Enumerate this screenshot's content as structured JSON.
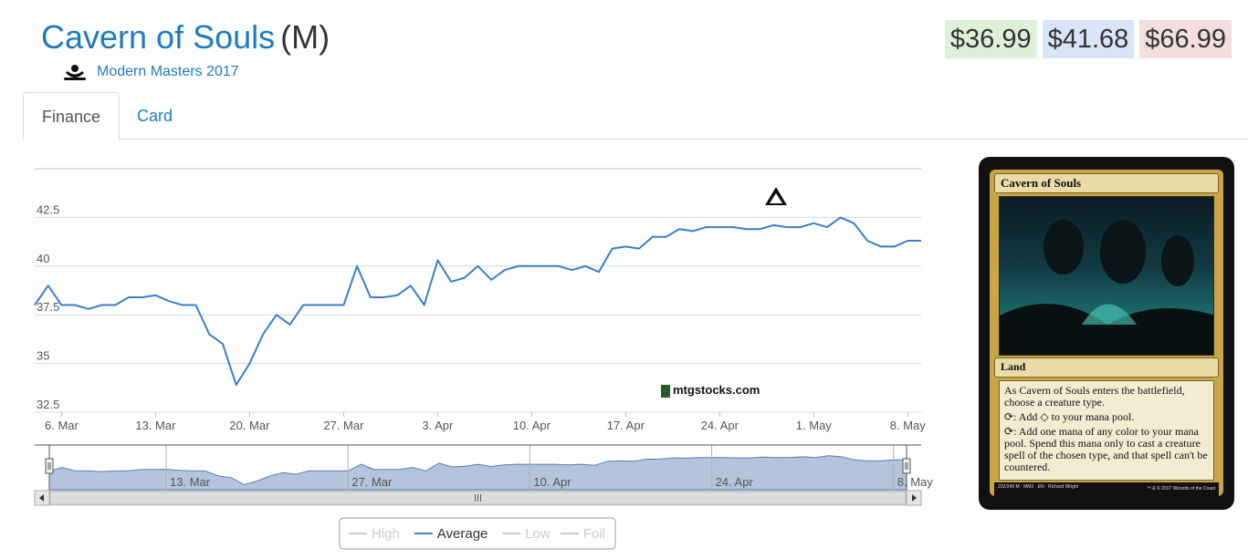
{
  "card": {
    "name": "Cavern of Souls",
    "rarity": "(M)",
    "set_name": "Modern Masters 2017",
    "set_icon": "modern-masters-set-icon"
  },
  "prices": {
    "low": "$36.99",
    "average": "$41.68",
    "high": "$66.99"
  },
  "colors": {
    "link": "#1f7bbf",
    "low_bg": "#dff0d8",
    "avg_bg": "#d9e4f7",
    "high_bg": "#f2dede",
    "series_line": "#3a7ecb",
    "navigator_fill": "#b3c4dc"
  },
  "tabs": [
    {
      "label": "Finance",
      "active": true
    },
    {
      "label": "Card",
      "active": false
    }
  ],
  "chart_data": {
    "type": "line",
    "x_start": "2017-03-04",
    "x_end": "2017-05-09",
    "ylim": [
      32.5,
      45
    ],
    "y_ticks": [
      "42.5",
      "40",
      "37.5",
      "35",
      "32.5"
    ],
    "x_ticks": [
      "6. Mar",
      "13. Mar",
      "20. Mar",
      "27. Mar",
      "3. Apr",
      "10. Apr",
      "17. Apr",
      "24. Apr",
      "1. May",
      "8. May"
    ],
    "navigator_ticks": [
      "13. Mar",
      "27. Mar",
      "10. Apr",
      "24. Apr",
      "8. May"
    ],
    "watermark": "mtgstocks.com",
    "legend": [
      "High",
      "Average",
      "Low",
      "Foil"
    ],
    "legend_active": "Average",
    "series": [
      {
        "name": "Average",
        "x": [
          "2017-03-04",
          "2017-03-05",
          "2017-03-06",
          "2017-03-07",
          "2017-03-08",
          "2017-03-09",
          "2017-03-10",
          "2017-03-11",
          "2017-03-12",
          "2017-03-13",
          "2017-03-14",
          "2017-03-15",
          "2017-03-16",
          "2017-03-17",
          "2017-03-18",
          "2017-03-19",
          "2017-03-20",
          "2017-03-21",
          "2017-03-22",
          "2017-03-23",
          "2017-03-24",
          "2017-03-25",
          "2017-03-26",
          "2017-03-27",
          "2017-03-28",
          "2017-03-29",
          "2017-03-30",
          "2017-03-31",
          "2017-04-01",
          "2017-04-02",
          "2017-04-03",
          "2017-04-04",
          "2017-04-05",
          "2017-04-06",
          "2017-04-07",
          "2017-04-08",
          "2017-04-09",
          "2017-04-10",
          "2017-04-11",
          "2017-04-12",
          "2017-04-13",
          "2017-04-14",
          "2017-04-15",
          "2017-04-16",
          "2017-04-17",
          "2017-04-18",
          "2017-04-19",
          "2017-04-20",
          "2017-04-21",
          "2017-04-22",
          "2017-04-23",
          "2017-04-24",
          "2017-04-25",
          "2017-04-26",
          "2017-04-27",
          "2017-04-28",
          "2017-04-29",
          "2017-04-30",
          "2017-05-01",
          "2017-05-02",
          "2017-05-03",
          "2017-05-04",
          "2017-05-05",
          "2017-05-06",
          "2017-05-07",
          "2017-05-08",
          "2017-05-09"
        ],
        "y": [
          38.0,
          39.0,
          38.0,
          38.0,
          37.8,
          38.0,
          38.0,
          38.4,
          38.4,
          38.5,
          38.2,
          38.0,
          38.0,
          36.5,
          36.0,
          33.9,
          35.0,
          36.5,
          37.5,
          37.0,
          38.0,
          38.0,
          38.0,
          38.0,
          40.0,
          38.4,
          38.4,
          38.5,
          39.0,
          38.0,
          40.3,
          39.2,
          39.4,
          40.0,
          39.3,
          39.8,
          40.0,
          40.0,
          40.0,
          40.0,
          39.8,
          40.0,
          39.7,
          40.9,
          41.0,
          40.9,
          41.5,
          41.5,
          41.9,
          41.8,
          42.0,
          42.0,
          42.0,
          41.9,
          41.9,
          42.1,
          42.0,
          42.0,
          42.2,
          42.0,
          42.5,
          42.2,
          41.3,
          41.0,
          41.0,
          41.3,
          41.3
        ]
      }
    ]
  },
  "card_image": {
    "title": "Cavern of Souls",
    "type_line": "Land",
    "rules_1": "As Cavern of Souls enters the battlefield, choose a creature type.",
    "rules_2": ": Add ◇ to your mana pool.",
    "rules_3": ": Add one mana of any color to your mana pool. Spend this mana only to cast a creature spell of the chosen type, and that spell can't be countered.",
    "footer_left": "232/249 M · MM3 · EN · Richard Wright",
    "footer_right": "™ & © 2017 Wizards of the Coast"
  }
}
